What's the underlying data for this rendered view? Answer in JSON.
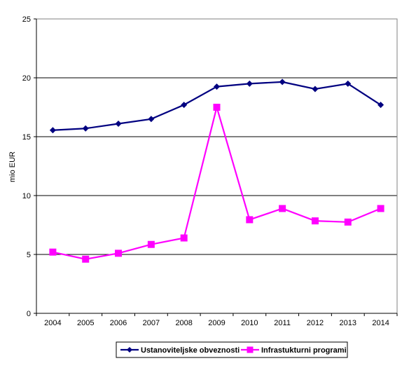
{
  "chart_data": {
    "type": "line",
    "x": [
      "2004",
      "2005",
      "2006",
      "2007",
      "2008",
      "2009",
      "2010",
      "2011",
      "2012",
      "2013",
      "2014"
    ],
    "ylabel": "mio EUR",
    "ylim": [
      0,
      25
    ],
    "yticks": [
      0,
      5,
      10,
      15,
      20,
      25
    ],
    "grid": true,
    "legend_position": "bottom",
    "series": [
      {
        "name": "Ustanoviteljske obveznosti",
        "color": "#000080",
        "marker": "diamond",
        "values": [
          15.55,
          15.7,
          16.1,
          16.5,
          17.7,
          19.25,
          19.5,
          19.65,
          19.05,
          19.5,
          17.7
        ]
      },
      {
        "name": "Infrastukturni programi",
        "color": "#FF00FF",
        "marker": "square",
        "values": [
          5.2,
          4.6,
          5.1,
          5.85,
          6.4,
          17.5,
          7.95,
          8.9,
          7.85,
          7.75,
          8.9
        ]
      }
    ]
  }
}
